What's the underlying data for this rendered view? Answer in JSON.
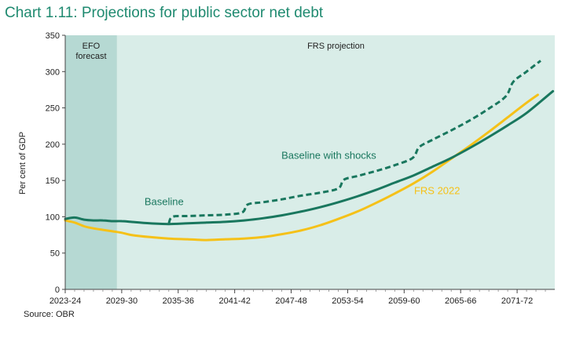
{
  "title": "Chart 1.11: Projections for public sector net debt",
  "source": "Source: OBR",
  "colors": {
    "teal": "#19775e",
    "yellow": "#f5c118",
    "efo_band": "#b6d9d3",
    "frs_band": "#d9ede8"
  },
  "chart_data": {
    "type": "line",
    "ylabel": "Per cent of GDP",
    "ylim": [
      0,
      350
    ],
    "yticks": [
      0,
      50,
      100,
      150,
      200,
      250,
      300,
      350
    ],
    "xlim": [
      2023,
      2075
    ],
    "xticks": [
      {
        "x": 2023,
        "label": "2023-24"
      },
      {
        "x": 2029,
        "label": "2029-30"
      },
      {
        "x": 2035,
        "label": "2035-36"
      },
      {
        "x": 2041,
        "label": "2041-42"
      },
      {
        "x": 2047,
        "label": "2047-48"
      },
      {
        "x": 2053,
        "label": "2053-54"
      },
      {
        "x": 2059,
        "label": "2059-60"
      },
      {
        "x": 2065,
        "label": "2065-66"
      },
      {
        "x": 2071,
        "label": "2071-72"
      }
    ],
    "regions": [
      {
        "label_lines": [
          "EFO",
          "forecast"
        ],
        "x0": 2023,
        "x1": 2028.5
      },
      {
        "label_lines": [
          "FRS projection"
        ],
        "x0": 2028.5,
        "x1": 2075
      }
    ],
    "series": [
      {
        "name": "Baseline with shocks",
        "style": "dashed",
        "color": "#19775e",
        "x": [
          2034,
          2034.4,
          2036,
          2038,
          2040,
          2041.8,
          2042.4,
          2044,
          2046,
          2048,
          2050,
          2052,
          2052.6,
          2054,
          2056,
          2058,
          2059.9,
          2060.6,
          2062,
          2064,
          2066,
          2068,
          2069.8,
          2070.6,
          2072,
          2073.5
        ],
        "values": [
          91,
          100,
          101,
          102,
          103,
          106,
          117,
          120,
          124,
          129,
          133,
          139,
          151,
          156,
          163,
          171,
          181,
          196,
          206,
          219,
          233,
          249,
          266,
          286,
          300,
          315
        ]
      },
      {
        "name": "Baseline",
        "style": "solid",
        "color": "#19775e",
        "x": [
          2023,
          2024,
          2025,
          2026,
          2027,
          2028,
          2029,
          2030,
          2032,
          2034,
          2036,
          2038,
          2040,
          2042,
          2044,
          2046,
          2048,
          2050,
          2052,
          2054,
          2056,
          2058,
          2060,
          2062,
          2064,
          2066,
          2068,
          2070,
          2072,
          2074.8
        ],
        "values": [
          97,
          99,
          96,
          95,
          95,
          94,
          94,
          93,
          91,
          90,
          91,
          92,
          93,
          95,
          98,
          102,
          107,
          113,
          120,
          128,
          137,
          147,
          157,
          169,
          181,
          195,
          210,
          226,
          243,
          273
        ]
      },
      {
        "name": "FRS 2022",
        "style": "solid",
        "color": "#f5c118",
        "x": [
          2023,
          2024,
          2025,
          2026,
          2027,
          2028,
          2029,
          2030,
          2032,
          2034,
          2036,
          2038,
          2040,
          2042,
          2044,
          2046,
          2048,
          2050,
          2052,
          2054,
          2056,
          2058,
          2060,
          2062,
          2064,
          2066,
          2068,
          2070,
          2072,
          2073.2
        ],
        "values": [
          95,
          92,
          87,
          84,
          82,
          80,
          78,
          75,
          72,
          70,
          69,
          68,
          69,
          70,
          72,
          76,
          81,
          88,
          97,
          107,
          119,
          132,
          146,
          162,
          180,
          198,
          217,
          237,
          257,
          268
        ]
      }
    ],
    "annotations": [
      {
        "text": "Baseline with shocks",
        "color": "#19775e",
        "x": 2051,
        "y": 180
      },
      {
        "text": "Baseline",
        "color": "#19775e",
        "x": 2033.5,
        "y": 116
      },
      {
        "text": "FRS 2022",
        "color": "#f5c118",
        "x": 2062.5,
        "y": 131
      }
    ]
  }
}
